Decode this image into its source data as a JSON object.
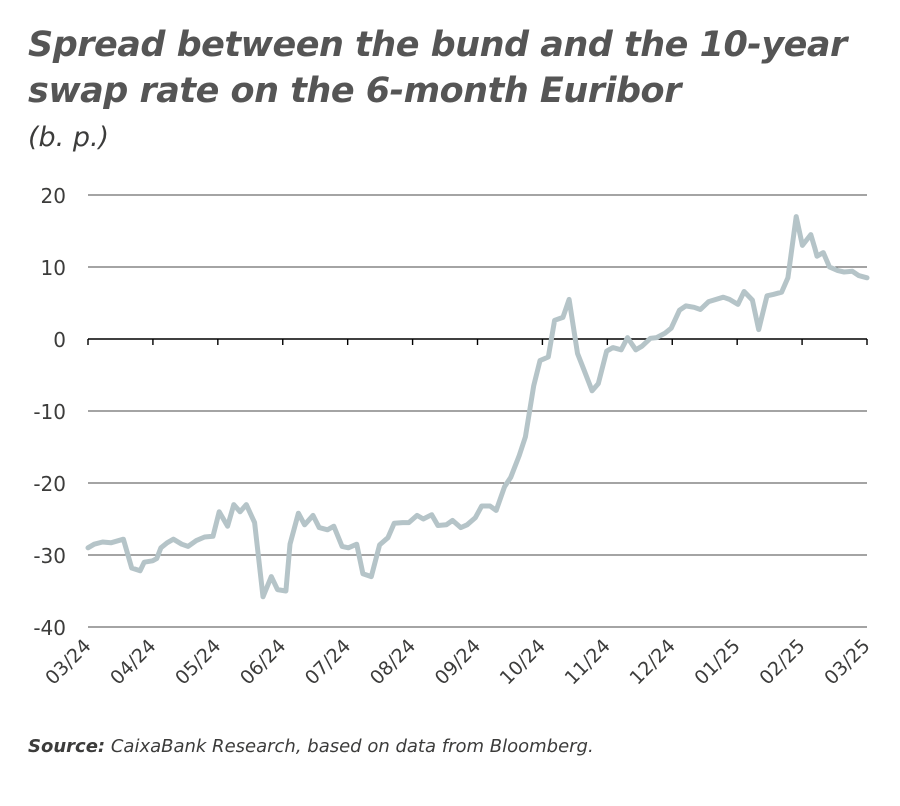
{
  "header": {
    "title": "Spread between the bund and the 10-year swap rate on the 6-month Euribor",
    "unit": "(b. p.)"
  },
  "footer": {
    "source_label": "Source:",
    "source_text": "CaixaBank Research, based on data from Bloomberg."
  },
  "chart_data": {
    "type": "line",
    "title": "Spread between the bund and the 10-year swap rate on the 6-month Euribor",
    "ylabel": "(b. p.)",
    "xlabel": "",
    "ylim": [
      -40,
      20
    ],
    "yticks": [
      20,
      10,
      0,
      -10,
      -20,
      -30,
      -40
    ],
    "xlim": [
      "2024-03-01",
      "2025-03-10"
    ],
    "xticks": [
      "03/24",
      "04/24",
      "05/24",
      "06/24",
      "07/24",
      "08/24",
      "09/24",
      "10/24",
      "11/24",
      "12/24",
      "01/25",
      "02/25",
      "03/25"
    ],
    "grid": "horizontal",
    "line_color": "#b5c4c8",
    "series": [
      {
        "name": "",
        "x": [
          "2024-03-01",
          "2024-03-04",
          "2024-03-08",
          "2024-03-12",
          "2024-03-18",
          "2024-03-22",
          "2024-03-26",
          "2024-03-28",
          "2024-04-01",
          "2024-04-03",
          "2024-04-05",
          "2024-04-08",
          "2024-04-11",
          "2024-04-15",
          "2024-04-18",
          "2024-04-22",
          "2024-04-26",
          "2024-04-30",
          "2024-05-03",
          "2024-05-07",
          "2024-05-10",
          "2024-05-13",
          "2024-05-16",
          "2024-05-20",
          "2024-05-24",
          "2024-05-28",
          "2024-05-31",
          "2024-06-04",
          "2024-06-06",
          "2024-06-10",
          "2024-06-13",
          "2024-06-17",
          "2024-06-20",
          "2024-06-24",
          "2024-06-27",
          "2024-07-01",
          "2024-07-04",
          "2024-07-08",
          "2024-07-11",
          "2024-07-15",
          "2024-07-19",
          "2024-07-23",
          "2024-07-26",
          "2024-07-30",
          "2024-08-02",
          "2024-08-06",
          "2024-08-09",
          "2024-08-13",
          "2024-08-16",
          "2024-08-20",
          "2024-08-23",
          "2024-08-27",
          "2024-08-30",
          "2024-09-03",
          "2024-09-06",
          "2024-09-10",
          "2024-09-13",
          "2024-09-17",
          "2024-09-20",
          "2024-09-24",
          "2024-09-27",
          "2024-10-01",
          "2024-10-04",
          "2024-10-08",
          "2024-10-11",
          "2024-10-15",
          "2024-10-18",
          "2024-10-22",
          "2024-10-25",
          "2024-10-29",
          "2024-11-01",
          "2024-11-05",
          "2024-11-08",
          "2024-11-12",
          "2024-11-15",
          "2024-11-19",
          "2024-11-22",
          "2024-11-26",
          "2024-11-29",
          "2024-12-03",
          "2024-12-06",
          "2024-12-10",
          "2024-12-13",
          "2024-12-17",
          "2024-12-20",
          "2024-12-24",
          "2024-12-31",
          "2025-01-03",
          "2025-01-07",
          "2025-01-10",
          "2025-01-14",
          "2025-01-17",
          "2025-01-21",
          "2025-01-24",
          "2025-01-28",
          "2025-01-31",
          "2025-02-04",
          "2025-02-07",
          "2025-02-11",
          "2025-02-13",
          "2025-02-14",
          "2025-02-17",
          "2025-02-20",
          "2025-02-24",
          "2025-02-27",
          "2025-03-03",
          "2025-03-06",
          "2025-03-10"
        ],
        "y": [
          -29,
          -28.5,
          -28.2,
          -28.3,
          -27.8,
          -31.8,
          -32.2,
          -31,
          -30.8,
          -30.5,
          -29,
          -28.3,
          -27.8,
          -28.5,
          -28.8,
          -28,
          -27.5,
          -27.4,
          -24,
          -26,
          -23,
          -24,
          -23,
          -25.5,
          -35.8,
          -33,
          -34.8,
          -35,
          -28.5,
          -24.2,
          -25.8,
          -24.5,
          -26.2,
          -26.5,
          -26,
          -28.8,
          -29,
          -28.5,
          -32.6,
          -33,
          -28.6,
          -27.6,
          -25.6,
          -25.5,
          -25.5,
          -24.5,
          -25,
          -24.4,
          -25.9,
          -25.8,
          -25.2,
          -26.2,
          -25.8,
          -24.8,
          -23.2,
          -23.2,
          -23.8,
          -20.5,
          -19.2,
          -16.2,
          -13.6,
          -6.5,
          -3,
          -2.5,
          2.6,
          3,
          5.5,
          -2,
          -4.2,
          -7.2,
          -6.2,
          -1.7,
          -1.2,
          -1.5,
          0.2,
          -1.5,
          -1,
          0.1,
          0.2,
          0.8,
          1.5,
          4,
          4.6,
          4.4,
          4.1,
          5.2,
          5.8,
          5.5,
          4.8,
          6.6,
          5.4,
          1.3,
          6,
          6.2,
          6.5,
          8.5,
          17,
          13,
          14.5,
          12.6,
          11.5,
          12,
          10,
          9.5,
          9.3,
          9.4,
          8.8,
          8.5
        ]
      }
    ]
  }
}
